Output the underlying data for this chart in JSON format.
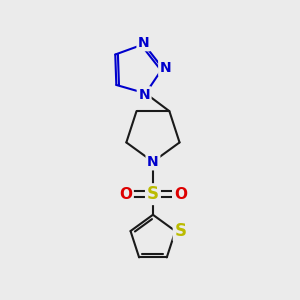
{
  "bg_color": "#ebebeb",
  "bond_color": "#1a1a1a",
  "bond_width": 1.5,
  "triazole_color": "#0000cc",
  "pyrrolidine_N_color": "#0000cc",
  "S_color": "#bbbb00",
  "O_color": "#dd0000",
  "thiophene_S_color": "#bbbb00",
  "font_size_atom": 10,
  "fig_size": [
    3.0,
    3.0
  ],
  "dpi": 100,
  "xlim": [
    0,
    10
  ],
  "ylim": [
    0,
    10
  ]
}
